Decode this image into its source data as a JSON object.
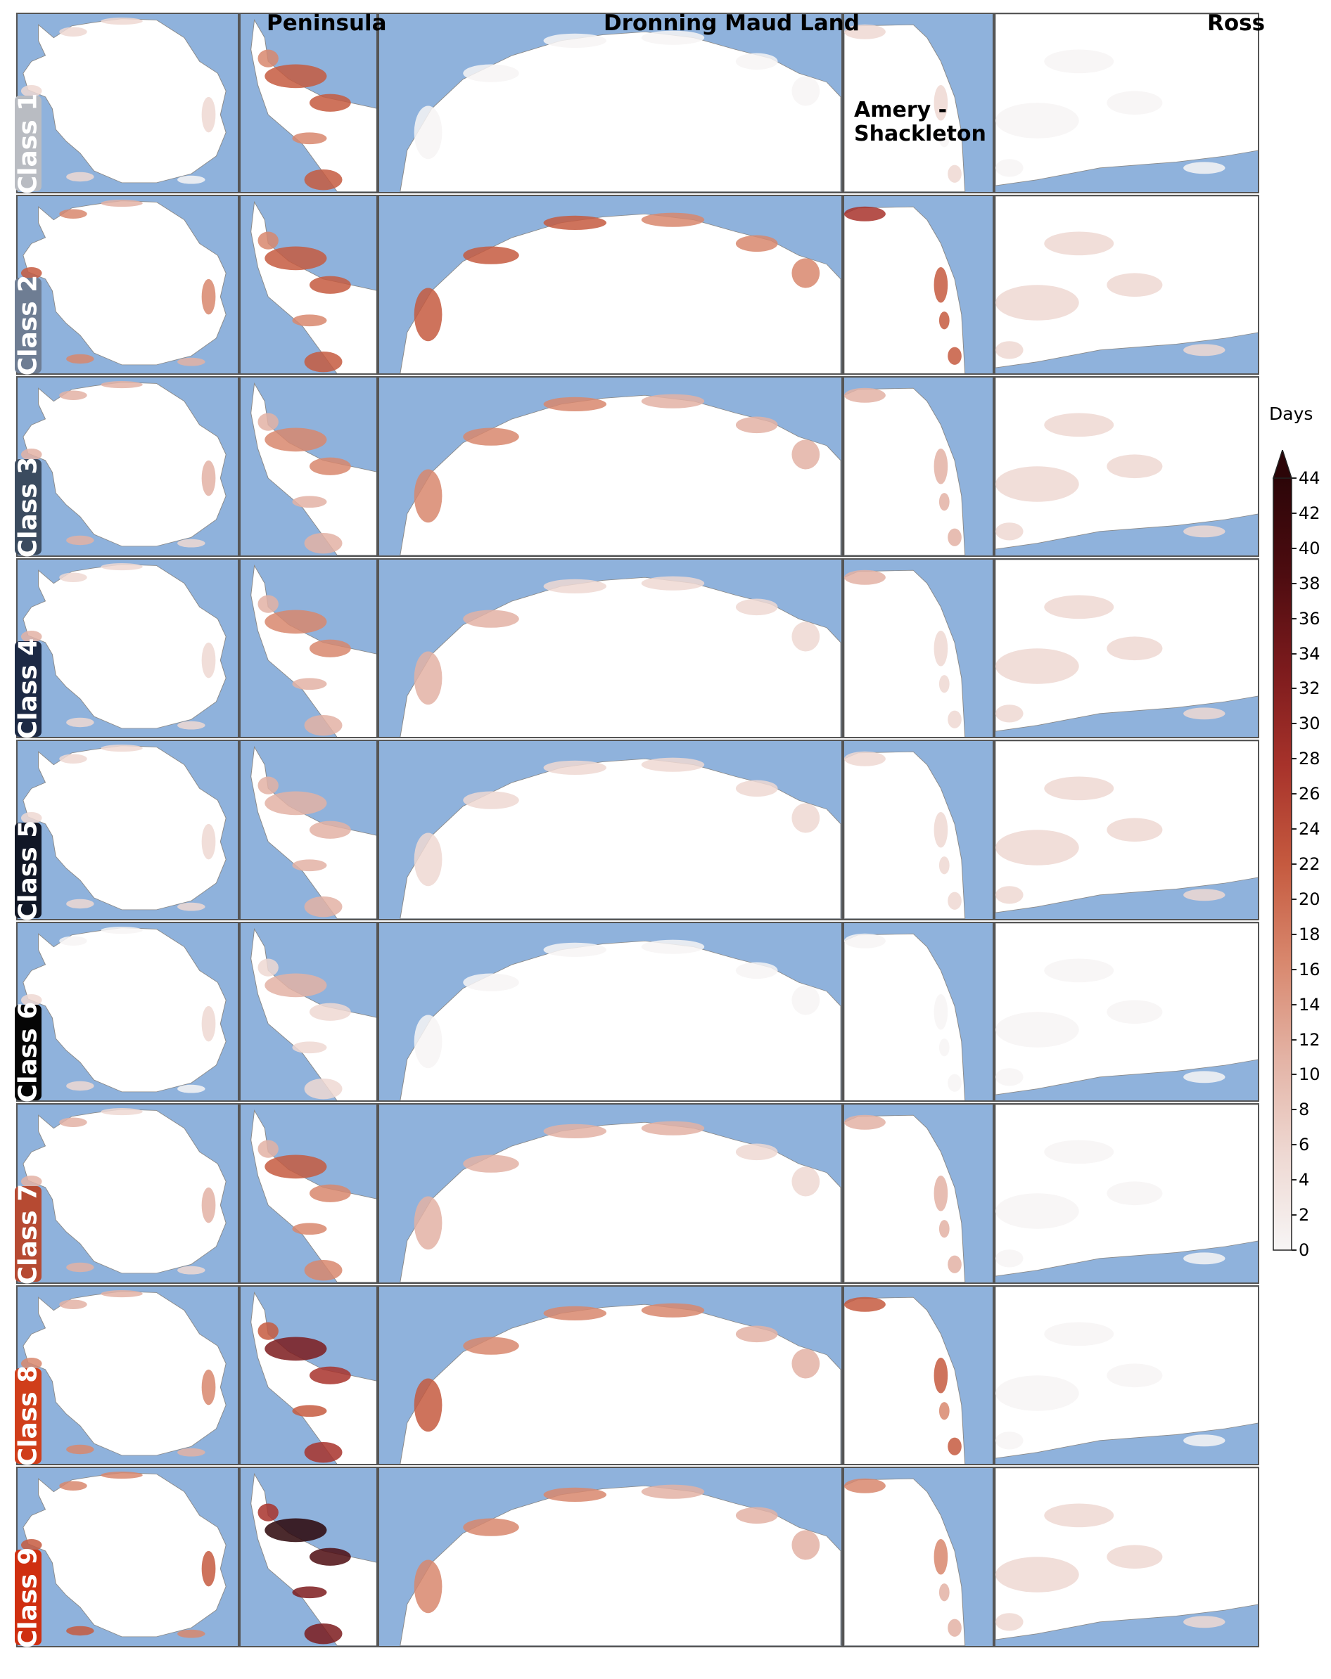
{
  "column_titles": {
    "peninsula": "Peninsula",
    "dml": "Dronning Maud Land",
    "amery_line1": "Amery -",
    "amery_line2": "Shackleton",
    "ross": "Ross"
  },
  "rows": [
    {
      "label": "Class 1",
      "color": "#b9bcc2",
      "intensity": [
        0.1,
        0.55,
        0.06,
        0.08,
        0.04
      ]
    },
    {
      "label": "Class 2",
      "color": "#6e7d93",
      "intensity": [
        0.45,
        0.55,
        0.55,
        0.6,
        0.12
      ]
    },
    {
      "label": "Class 3",
      "color": "#3b4b5f",
      "intensity": [
        0.3,
        0.35,
        0.4,
        0.3,
        0.12
      ]
    },
    {
      "label": "Class 4",
      "color": "#1d2a45",
      "intensity": [
        0.2,
        0.35,
        0.22,
        0.2,
        0.12
      ]
    },
    {
      "label": "Class 5",
      "color": "#111726",
      "intensity": [
        0.12,
        0.3,
        0.15,
        0.12,
        0.12
      ]
    },
    {
      "label": "Class 6",
      "color": "#050505",
      "intensity": [
        0.08,
        0.2,
        0.06,
        0.06,
        0.06
      ]
    },
    {
      "label": "Class 7",
      "color": "#b64a32",
      "intensity": [
        0.25,
        0.45,
        0.25,
        0.3,
        0.04
      ]
    },
    {
      "label": "Class 8",
      "color": "#d03e1a",
      "intensity": [
        0.4,
        0.7,
        0.45,
        0.55,
        0.06
      ]
    },
    {
      "label": "Class 9",
      "color": "#cf2f10",
      "intensity": [
        0.55,
        0.95,
        0.4,
        0.35,
        0.12
      ]
    }
  ],
  "colorbar": {
    "title": "Days",
    "min": 0,
    "max": 44,
    "extend": "max",
    "colors": [
      "#f7f5f5",
      "#eed8d2",
      "#e3b2a4",
      "#d8876d",
      "#c55a3f",
      "#a8332b",
      "#7d1b1d",
      "#4d0c10",
      "#2c0508"
    ],
    "ticks": [
      "0",
      "2",
      "4",
      "6",
      "8",
      "10",
      "12",
      "14",
      "16",
      "18",
      "20",
      "22",
      "24",
      "26",
      "28",
      "30",
      "32",
      "34",
      "36",
      "38",
      "40",
      "42",
      "44"
    ]
  },
  "background": {
    "ocean": "#8fb2dc",
    "land": "#ffffff",
    "outline": "#8a8a8a"
  }
}
